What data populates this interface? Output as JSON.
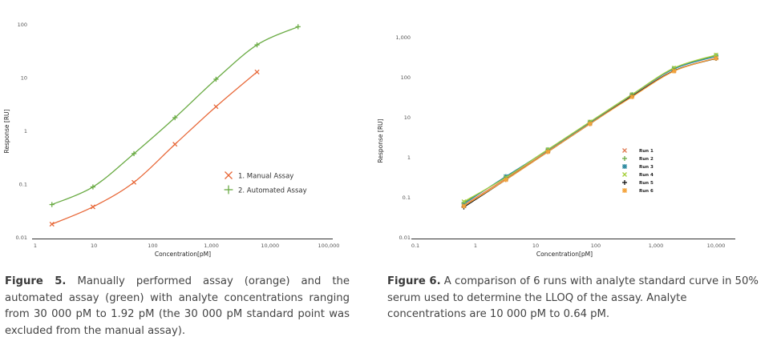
{
  "chart_data": [
    {
      "type": "line",
      "id": "figure-5",
      "xscale": "log",
      "yscale": "log",
      "xlabel": "Concentration[pM]",
      "ylabel": "Response [RU]",
      "xlim": [
        1,
        100000
      ],
      "ylim": [
        0.01,
        100
      ],
      "xticks": [
        1,
        10,
        100,
        1000,
        10000,
        100000
      ],
      "xtick_labels": [
        "1",
        "10",
        "100",
        "1,000",
        "10,000",
        "100,000"
      ],
      "yticks": [
        0.01,
        0.1,
        1,
        10,
        100
      ],
      "ytick_labels": [
        "0.01",
        "0.1",
        "1",
        "10",
        "100"
      ],
      "legend_position": "center-right",
      "series": [
        {
          "name": "1. Manual Assay",
          "color": "#e8693a",
          "marker": "x",
          "x": [
            1.92,
            9.6,
            48,
            240,
            1200,
            6000
          ],
          "y": [
            0.018,
            0.038,
            0.11,
            0.57,
            2.9,
            13
          ]
        },
        {
          "name": "2. Automated Assay",
          "color": "#6aab44",
          "marker": "+",
          "x": [
            1.92,
            9.6,
            48,
            240,
            1200,
            6000,
            30000
          ],
          "y": [
            0.042,
            0.09,
            0.38,
            1.8,
            9.5,
            42,
            92
          ]
        }
      ]
    },
    {
      "type": "line",
      "id": "figure-6",
      "xscale": "log",
      "yscale": "log",
      "xlabel": "Concentration[pM]",
      "ylabel": "Response [RU]",
      "xlim": [
        0.1,
        10000
      ],
      "ylim": [
        0.01,
        1000
      ],
      "xticks": [
        0.1,
        1,
        10,
        100,
        1000,
        10000
      ],
      "xtick_labels": [
        "0.1",
        "1",
        "10",
        "100",
        "1,000",
        "10,000"
      ],
      "yticks": [
        0.01,
        0.1,
        1,
        10,
        100,
        1000
      ],
      "ytick_labels": [
        "0.01",
        "0.1",
        "1",
        "10",
        "100",
        "1,000"
      ],
      "legend_position": "center-right",
      "series": [
        {
          "name": "Run 1",
          "color": "#e07b54",
          "marker": "x",
          "x": [
            0.64,
            3.2,
            16,
            80,
            400,
            2000,
            10000
          ],
          "y": [
            0.065,
            0.3,
            1.45,
            7.2,
            35,
            150,
            310
          ]
        },
        {
          "name": "Run 2",
          "color": "#6aab44",
          "marker": "+",
          "x": [
            0.64,
            3.2,
            16,
            80,
            400,
            2000,
            10000
          ],
          "y": [
            0.075,
            0.33,
            1.6,
            7.8,
            38,
            170,
            360
          ]
        },
        {
          "name": "Run 3",
          "color": "#2e8aa0",
          "marker": "asterisk",
          "x": [
            0.64,
            3.2,
            16,
            80,
            400,
            2000,
            10000
          ],
          "y": [
            0.07,
            0.34,
            1.55,
            7.6,
            37,
            165,
            340
          ]
        },
        {
          "name": "Run 4",
          "color": "#a6cf3a",
          "marker": "x",
          "x": [
            0.64,
            3.2,
            16,
            80,
            400,
            2000,
            10000
          ],
          "y": [
            0.08,
            0.32,
            1.6,
            7.9,
            38,
            175,
            370
          ]
        },
        {
          "name": "Run 5",
          "color": "#111111",
          "marker": "+",
          "x": [
            0.64,
            3.2,
            16,
            80,
            400,
            2000,
            10000
          ],
          "y": [
            0.058,
            0.28,
            1.4,
            7.0,
            34,
            148,
            300
          ]
        },
        {
          "name": "Run 6",
          "color": "#f4a33a",
          "marker": "asterisk",
          "x": [
            0.64,
            3.2,
            16,
            80,
            400,
            2000,
            10000
          ],
          "y": [
            0.062,
            0.28,
            1.4,
            7.0,
            33,
            145,
            305
          ]
        }
      ]
    }
  ],
  "captions": {
    "fig5": {
      "label": "Figure 5.",
      "text": " Manually performed assay (orange) and the automated assay (green) with analyte concentrations ranging from 30 000 pM to 1.92 pM (the 30 000 pM standard point was excluded from the manual assay)."
    },
    "fig6": {
      "label": "Figure 6.",
      "text": " A comparison of 6 runs with analyte standard curve in 50% serum used to determine the LLOQ of the assay. Analyte concentrations are 10 000 pM to 0.64 pM."
    }
  }
}
